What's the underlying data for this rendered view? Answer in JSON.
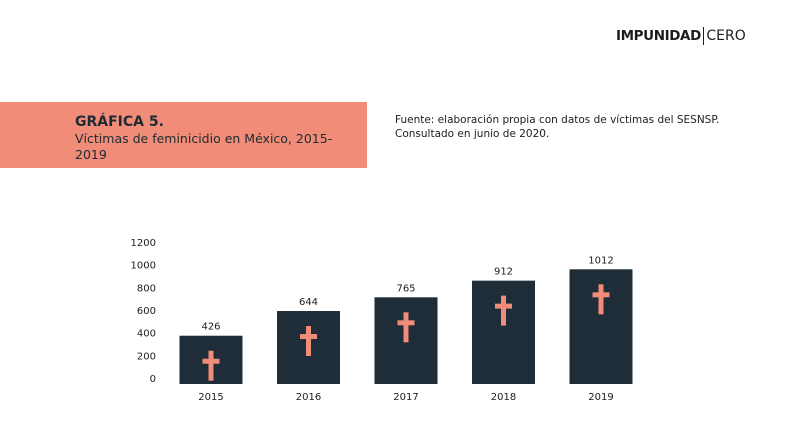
{
  "logo": {
    "bold": "IMPUNIDAD",
    "light": "CERO"
  },
  "header": {
    "title": "GRÁFICA 5.",
    "subtitle": "Víctimas de feminicidio en México, 2015-2019"
  },
  "source": {
    "line1": "Fuente: elaboración propia con datos de víctimas del SESNSP.",
    "line2": "Consultado en junio de 2020."
  },
  "colors": {
    "bar": "#1e2d38",
    "cross": "#f08c78",
    "banner": "#f08c78"
  },
  "chart_data": {
    "type": "bar",
    "title": "",
    "xlabel": "",
    "ylabel": "",
    "categories": [
      "2015",
      "2016",
      "2017",
      "2018",
      "2019"
    ],
    "values": [
      426,
      644,
      765,
      912,
      1012
    ],
    "ylim": [
      0,
      1200
    ],
    "yticks": [
      0,
      200,
      400,
      600,
      800,
      1000,
      1200
    ],
    "grid": false,
    "legend": "none",
    "bar_icon": "cross-icon"
  }
}
